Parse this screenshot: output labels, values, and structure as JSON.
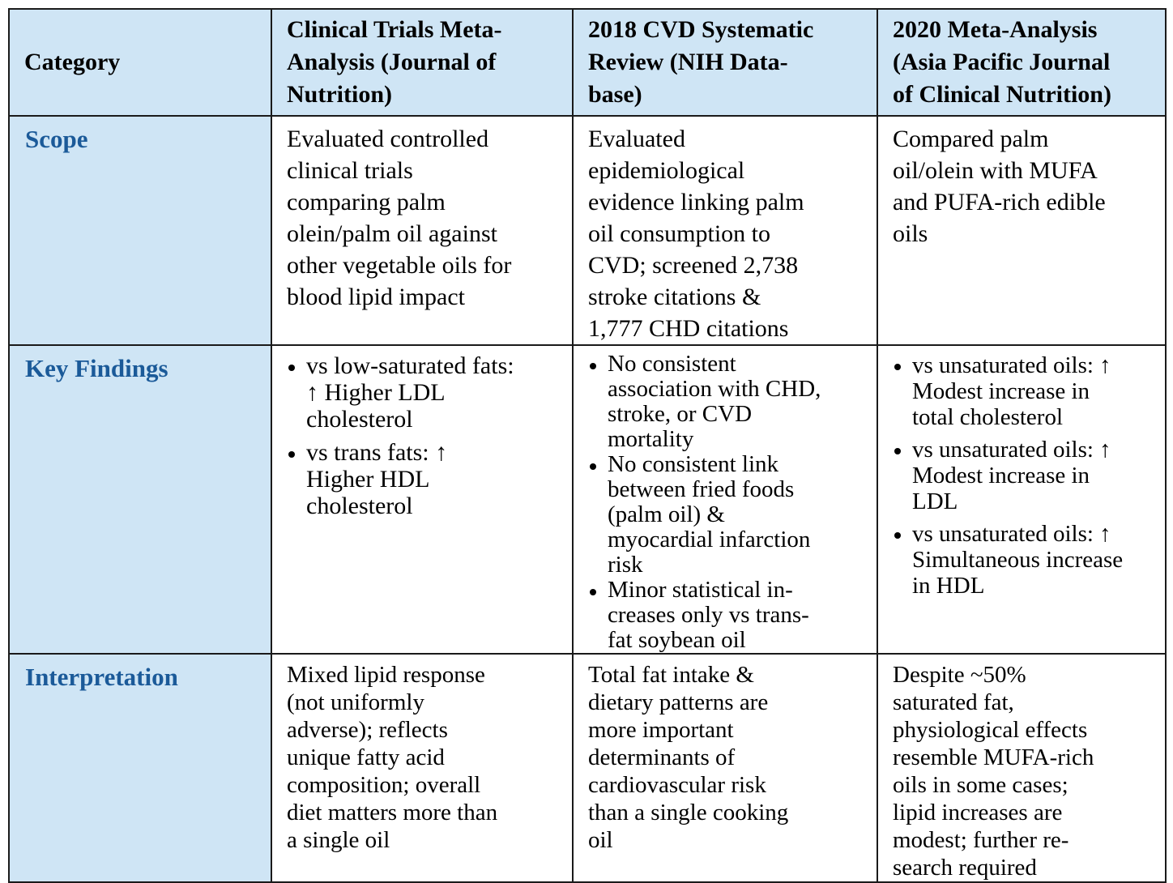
{
  "headers": {
    "category": "Category",
    "col1": [
      "Clinical Trials Meta-",
      "Analysis (Journal of",
      "Nutrition)"
    ],
    "col2": [
      "2018 CVD Systematic",
      "Review (NIH Data-",
      "base)"
    ],
    "col3": [
      "2020 Meta-Analysis",
      "(Asia Pacific Journal",
      "of Clinical Nutrition)"
    ]
  },
  "rows": {
    "scope": {
      "label": "Scope",
      "col1": [
        "Evaluated controlled",
        "clinical trials",
        "comparing palm",
        "olein/palm oil against",
        "other vegetable oils for",
        "blood lipid impact"
      ],
      "col2": [
        "Evaluated",
        "epidemiological",
        "evidence linking palm",
        "oil consumption to",
        "CVD; screened 2,738",
        "stroke citations &",
        "1,777 CHD citations"
      ],
      "col3": [
        "Compared palm",
        "oil/olein with MUFA",
        "and PUFA-rich edible",
        "oils"
      ]
    },
    "findings": {
      "label": "Key Findings",
      "col1": [
        [
          "vs low-saturated fats:",
          "↑ Higher LDL",
          "cholesterol"
        ],
        [
          "vs trans fats: ↑",
          "Higher HDL",
          "cholesterol"
        ]
      ],
      "col2": [
        [
          "No consistent",
          "association with CHD,",
          "stroke, or CVD",
          "mortality"
        ],
        [
          "No consistent link",
          "between fried foods",
          "(palm oil) &",
          "myocardial infarction",
          "risk"
        ],
        [
          "Minor statistical in-",
          "creases only vs trans-",
          "fat soybean oil"
        ]
      ],
      "col3": [
        [
          "vs unsaturated oils: ↑",
          "Modest increase in",
          "total cholesterol"
        ],
        [
          "vs unsaturated oils: ↑",
          "Modest increase in",
          "LDL"
        ],
        [
          "vs unsaturated oils: ↑",
          "Simultaneous increase",
          "in HDL"
        ]
      ]
    },
    "interpretation": {
      "label": "Interpretation",
      "col1": [
        "Mixed lipid response",
        "(not uniformly",
        "adverse); reflects",
        "unique fatty acid",
        "composition; overall",
        "diet matters more than",
        "a single oil"
      ],
      "col2": [
        "Total fat intake &",
        "dietary patterns are",
        "more important",
        "determinants of",
        "cardiovascular risk",
        "than a single cooking",
        "oil"
      ],
      "col3": [
        "Despite ~50%",
        "saturated fat,",
        "physiological effects",
        "resemble MUFA-rich",
        "oils in some cases;",
        "lipid increases are",
        "modest; further re-",
        "search required"
      ]
    }
  },
  "colors": {
    "header_bg": "#cfe5f5",
    "category_text": "#1b5a99",
    "border": "#1a1a1a"
  }
}
